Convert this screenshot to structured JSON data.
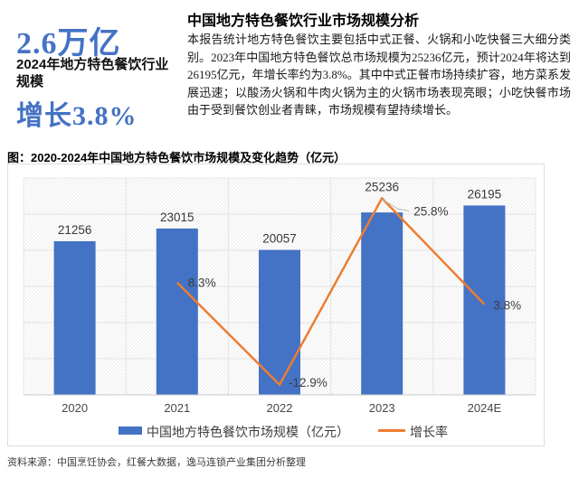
{
  "kpi": {
    "headline": "2.6万亿",
    "subtitle": "2024年地方特色餐饮行业规模",
    "growth": "增长3.8%"
  },
  "analysis": {
    "title": "中国地方特色餐饮行业市场规模分析",
    "body": "本报告统计地方特色餐饮主要包括中式正餐、火锅和小吃快餐三大细分类别。2023年中国地方特色餐饮总市场规模为25236亿元，预计2024年将达到26195亿元，年增长率约为3.8%。其中中式正餐市场持续扩容，地方菜系发展迅速；以酸汤火锅和牛肉火锅为主的火锅市场表现亮眼；小吃快餐市场由于受到餐饮创业者青睐，市场规模有望持续增长。"
  },
  "figure": {
    "caption": "图：2020-2024年中国地方特色餐饮市场规模及变化趋势（亿元）"
  },
  "chart_data": {
    "type": "bar+line",
    "categories": [
      "2020",
      "2021",
      "2022",
      "2023",
      "2024E"
    ],
    "series": [
      {
        "name": "中国地方特色餐饮市场规模（亿元）",
        "type": "bar",
        "axis": "primary",
        "values": [
          21256,
          23015,
          20057,
          25236,
          26195
        ],
        "data_labels": [
          "21256",
          "23015",
          "20057",
          "25236",
          "26195"
        ],
        "color": "#4472C4"
      },
      {
        "name": "增长率",
        "type": "line",
        "axis": "secondary",
        "values": [
          null,
          8.3,
          -12.9,
          25.8,
          3.8
        ],
        "data_labels": [
          "",
          "8.3%",
          "-12.9%",
          "25.8%",
          "3.8%"
        ],
        "color": "#ED7D31"
      }
    ],
    "primary_axis": {
      "min": 0,
      "max": 30000,
      "step": 5000,
      "labels_visible": false
    },
    "secondary_axis": {
      "min": -15,
      "max": 30,
      "labels_visible": false
    },
    "grid": true,
    "legend_position": "bottom"
  },
  "source": "资料来源：中国烹饪协会，红餐大数据，逸马连锁产业集团分析整理",
  "colors": {
    "accent_blue": "#4472C4",
    "line_orange": "#ED7D31",
    "grid_gray": "#e3e3e3",
    "label_gray": "#3d3d3d"
  }
}
